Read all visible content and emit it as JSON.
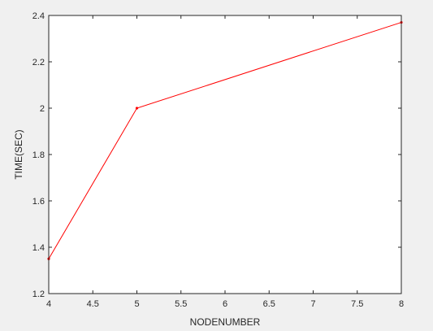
{
  "chart_data": {
    "type": "line",
    "title": "",
    "xlabel": "NODENUMBER",
    "ylabel": "TIME(SEC)",
    "xlim": [
      4,
      8
    ],
    "ylim": [
      1.2,
      2.4
    ],
    "xticks": [
      4,
      4.5,
      5,
      5.5,
      6,
      6.5,
      7,
      7.5,
      8
    ],
    "xtick_labels": [
      "4",
      "4.5",
      "5",
      "5.5",
      "6",
      "6.5",
      "7",
      "7.5",
      "8"
    ],
    "yticks": [
      1.2,
      1.4,
      1.6,
      1.8,
      2,
      2.2,
      2.4
    ],
    "ytick_labels": [
      "1.2",
      "1.4",
      "1.6",
      "1.8",
      "2",
      "2.2",
      "2.4"
    ],
    "grid": false,
    "legend": "none",
    "series": [
      {
        "color": "#ff0000",
        "marker": "dot",
        "x": [
          4,
          5,
          8
        ],
        "y": [
          1.35,
          2.0,
          2.37
        ]
      }
    ]
  }
}
